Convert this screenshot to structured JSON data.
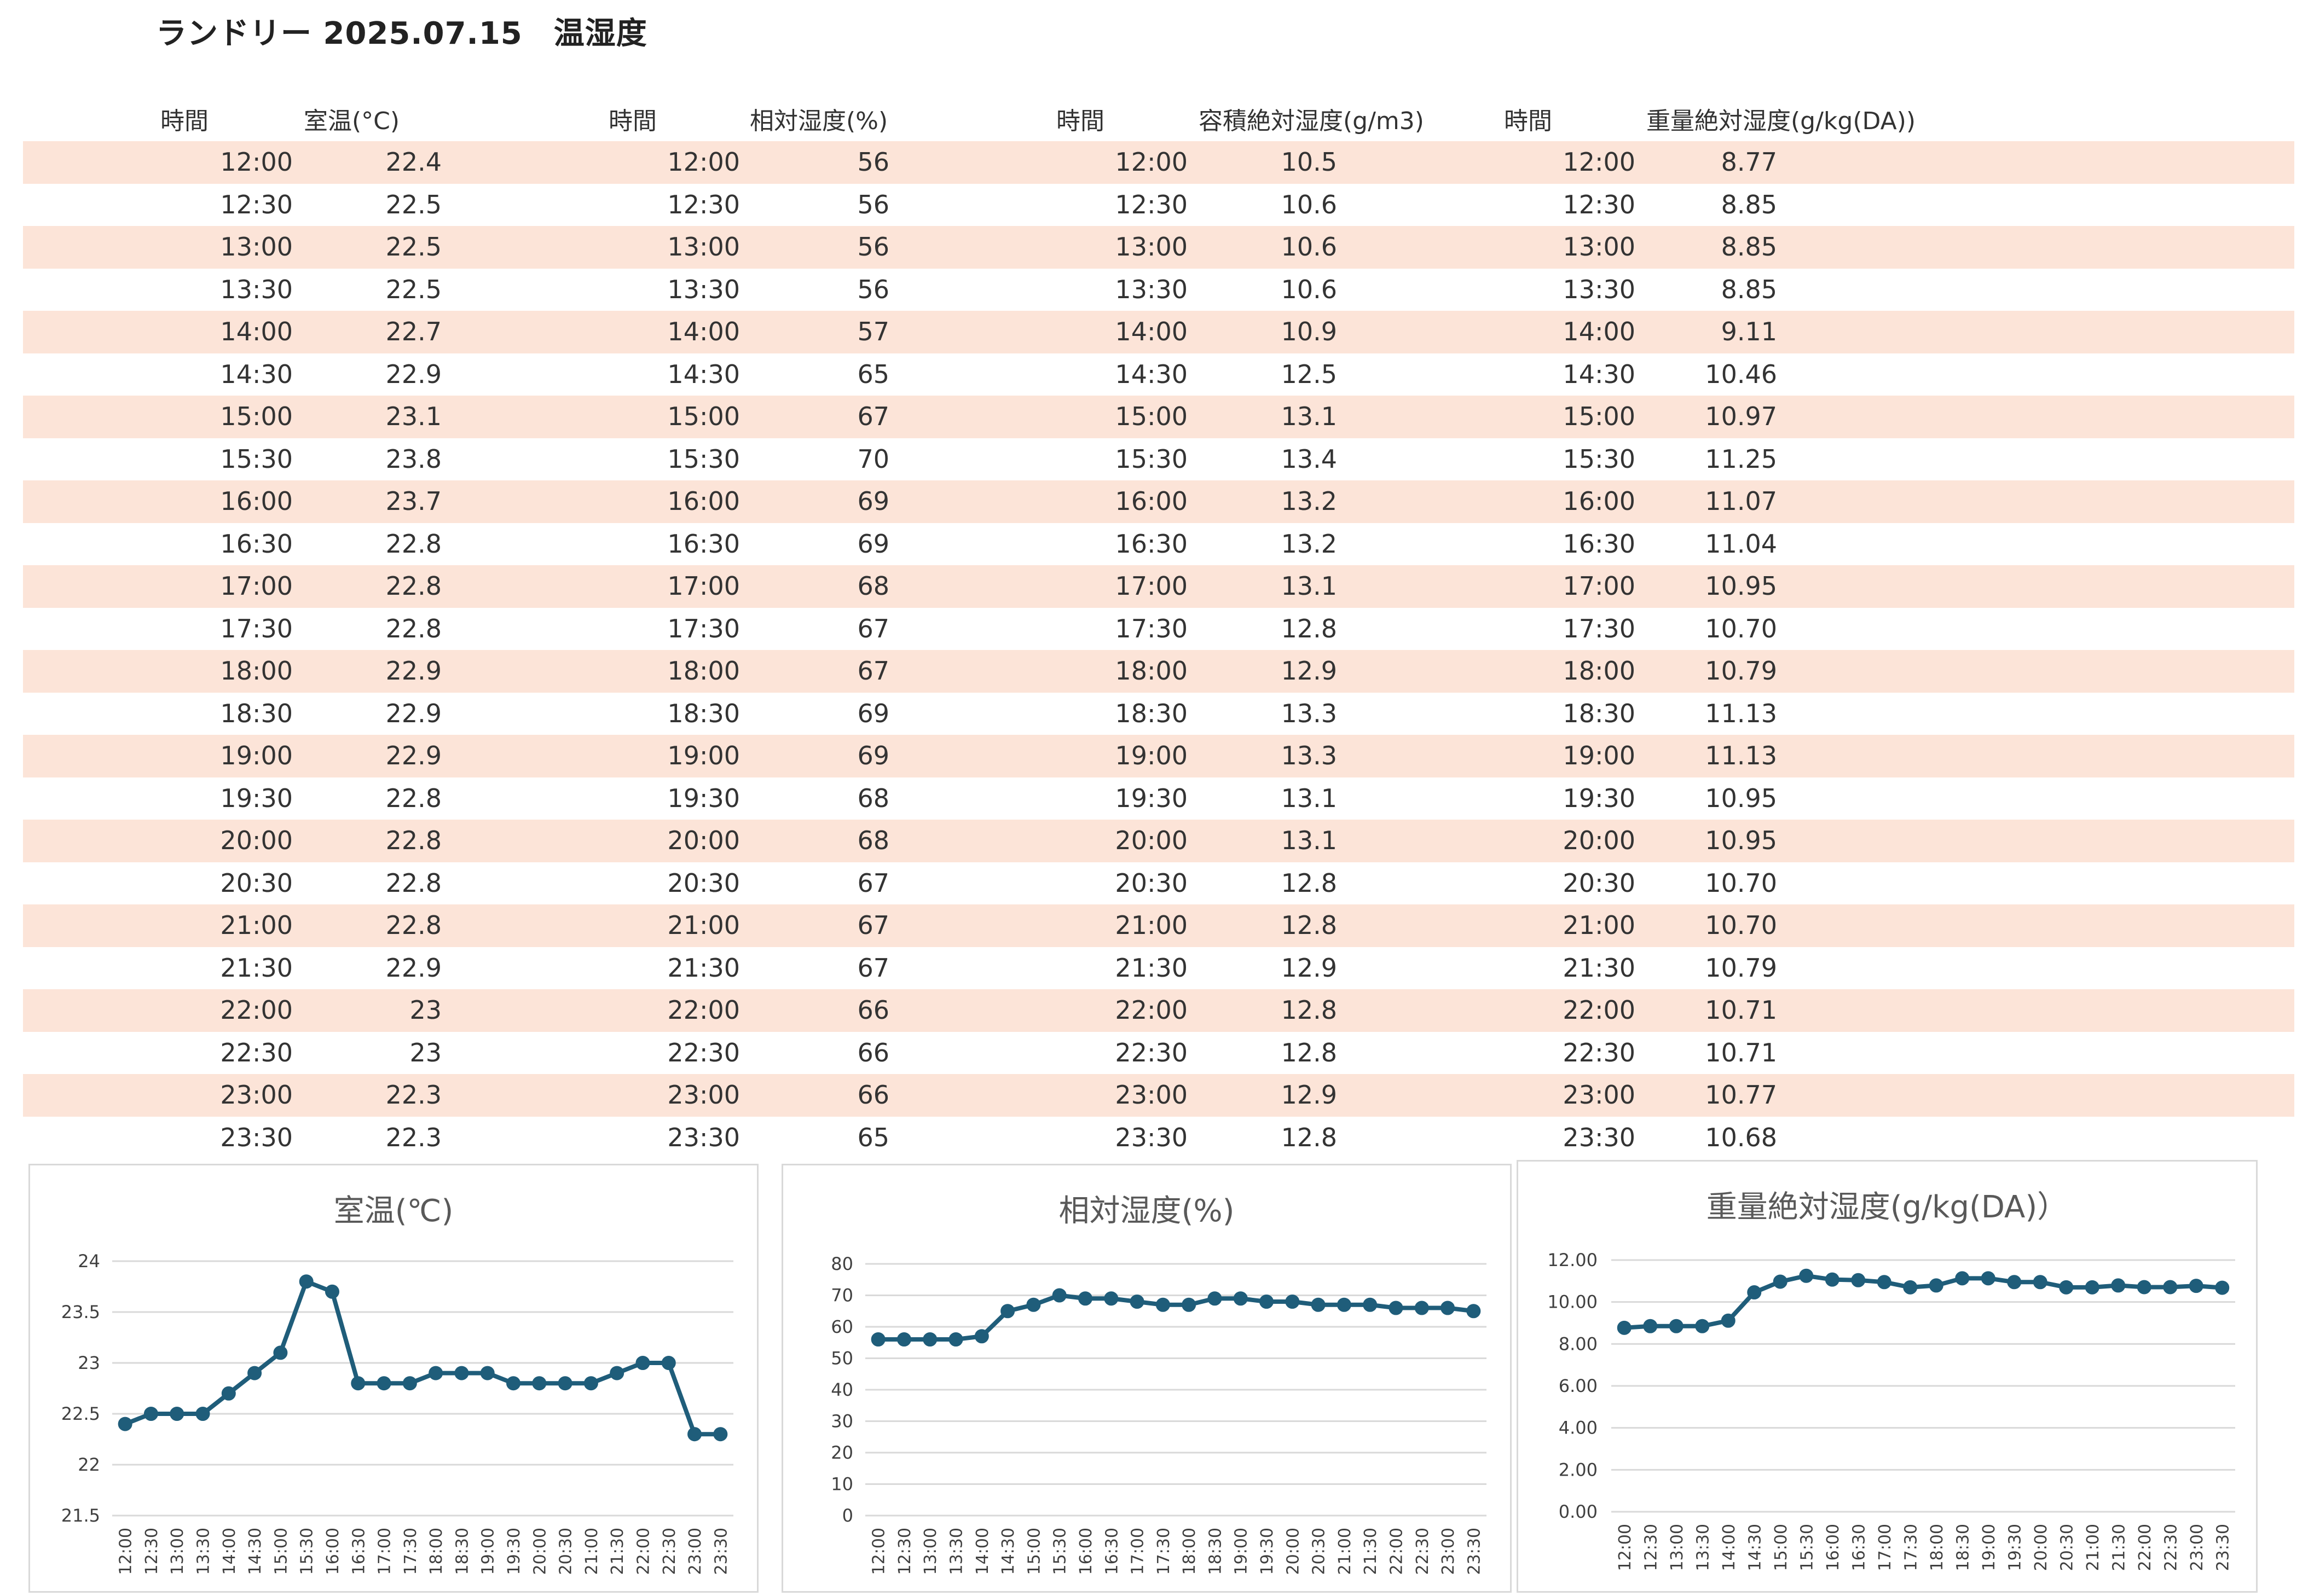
{
  "title": "ランドリー 2025.07.15　温湿度",
  "headers": {
    "time": "時間",
    "temp": "室温(°C)",
    "rh": "相対湿度(%)",
    "vol": "容積絶対湿度(g/m3)",
    "mass": "重量絶対湿度(g/kg(DA))"
  },
  "rows": [
    {
      "time": "12:00",
      "temp": "22.4",
      "rh": "56",
      "vol": "10.5",
      "mass": "8.77"
    },
    {
      "time": "12:30",
      "temp": "22.5",
      "rh": "56",
      "vol": "10.6",
      "mass": "8.85"
    },
    {
      "time": "13:00",
      "temp": "22.5",
      "rh": "56",
      "vol": "10.6",
      "mass": "8.85"
    },
    {
      "time": "13:30",
      "temp": "22.5",
      "rh": "56",
      "vol": "10.6",
      "mass": "8.85"
    },
    {
      "time": "14:00",
      "temp": "22.7",
      "rh": "57",
      "vol": "10.9",
      "mass": "9.11"
    },
    {
      "time": "14:30",
      "temp": "22.9",
      "rh": "65",
      "vol": "12.5",
      "mass": "10.46"
    },
    {
      "time": "15:00",
      "temp": "23.1",
      "rh": "67",
      "vol": "13.1",
      "mass": "10.97"
    },
    {
      "time": "15:30",
      "temp": "23.8",
      "rh": "70",
      "vol": "13.4",
      "mass": "11.25"
    },
    {
      "time": "16:00",
      "temp": "23.7",
      "rh": "69",
      "vol": "13.2",
      "mass": "11.07"
    },
    {
      "time": "16:30",
      "temp": "22.8",
      "rh": "69",
      "vol": "13.2",
      "mass": "11.04"
    },
    {
      "time": "17:00",
      "temp": "22.8",
      "rh": "68",
      "vol": "13.1",
      "mass": "10.95"
    },
    {
      "time": "17:30",
      "temp": "22.8",
      "rh": "67",
      "vol": "12.8",
      "mass": "10.70"
    },
    {
      "time": "18:00",
      "temp": "22.9",
      "rh": "67",
      "vol": "12.9",
      "mass": "10.79"
    },
    {
      "time": "18:30",
      "temp": "22.9",
      "rh": "69",
      "vol": "13.3",
      "mass": "11.13"
    },
    {
      "time": "19:00",
      "temp": "22.9",
      "rh": "69",
      "vol": "13.3",
      "mass": "11.13"
    },
    {
      "time": "19:30",
      "temp": "22.8",
      "rh": "68",
      "vol": "13.1",
      "mass": "10.95"
    },
    {
      "time": "20:00",
      "temp": "22.8",
      "rh": "68",
      "vol": "13.1",
      "mass": "10.95"
    },
    {
      "time": "20:30",
      "temp": "22.8",
      "rh": "67",
      "vol": "12.8",
      "mass": "10.70"
    },
    {
      "time": "21:00",
      "temp": "22.8",
      "rh": "67",
      "vol": "12.8",
      "mass": "10.70"
    },
    {
      "time": "21:30",
      "temp": "22.9",
      "rh": "67",
      "vol": "12.9",
      "mass": "10.79"
    },
    {
      "time": "22:00",
      "temp": "23",
      "rh": "66",
      "vol": "12.8",
      "mass": "10.71"
    },
    {
      "time": "22:30",
      "temp": "23",
      "rh": "66",
      "vol": "12.8",
      "mass": "10.71"
    },
    {
      "time": "23:00",
      "temp": "22.3",
      "rh": "66",
      "vol": "12.9",
      "mass": "10.77"
    },
    {
      "time": "23:30",
      "temp": "22.3",
      "rh": "65",
      "vol": "12.8",
      "mass": "10.68"
    }
  ],
  "colors": {
    "row_shade": "#fce4d8",
    "series_line": "#1f5d7a",
    "gridline": "#d9d9d9",
    "chart_title": "#595959"
  },
  "chart_data": [
    {
      "type": "line",
      "title": "室温(℃)",
      "categories": [
        "12:00",
        "12:30",
        "13:00",
        "13:30",
        "14:00",
        "14:30",
        "15:00",
        "15:30",
        "16:00",
        "16:30",
        "17:00",
        "17:30",
        "18:00",
        "18:30",
        "19:00",
        "19:30",
        "20:00",
        "20:30",
        "21:00",
        "21:30",
        "22:00",
        "22:30",
        "23:00",
        "23:30"
      ],
      "values": [
        22.4,
        22.5,
        22.5,
        22.5,
        22.7,
        22.9,
        23.1,
        23.8,
        23.7,
        22.8,
        22.8,
        22.8,
        22.9,
        22.9,
        22.9,
        22.8,
        22.8,
        22.8,
        22.8,
        22.9,
        23.0,
        23.0,
        22.3,
        22.3
      ],
      "ylim": [
        21.5,
        24
      ],
      "yticks": [
        "21.5",
        "22",
        "22.5",
        "23",
        "23.5",
        "24"
      ],
      "ytick_values": [
        21.5,
        22,
        22.5,
        23,
        23.5,
        24
      ],
      "grid": true
    },
    {
      "type": "line",
      "title": "相対湿度(%)",
      "categories": [
        "12:00",
        "12:30",
        "13:00",
        "13:30",
        "14:00",
        "14:30",
        "15:00",
        "15:30",
        "16:00",
        "16:30",
        "17:00",
        "17:30",
        "18:00",
        "18:30",
        "19:00",
        "19:30",
        "20:00",
        "20:30",
        "21:00",
        "21:30",
        "22:00",
        "22:30",
        "23:00",
        "23:30"
      ],
      "values": [
        56,
        56,
        56,
        56,
        57,
        65,
        67,
        70,
        69,
        69,
        68,
        67,
        67,
        69,
        69,
        68,
        68,
        67,
        67,
        67,
        66,
        66,
        66,
        65
      ],
      "ylim": [
        0,
        80
      ],
      "yticks": [
        "0",
        "10",
        "20",
        "30",
        "40",
        "50",
        "60",
        "70",
        "80"
      ],
      "ytick_values": [
        0,
        10,
        20,
        30,
        40,
        50,
        60,
        70,
        80
      ],
      "grid": true
    },
    {
      "type": "line",
      "title": "重量絶対湿度(g/kg(DA)）",
      "categories": [
        "12:00",
        "12:30",
        "13:00",
        "13:30",
        "14:00",
        "14:30",
        "15:00",
        "15:30",
        "16:00",
        "16:30",
        "17:00",
        "17:30",
        "18:00",
        "18:30",
        "19:00",
        "19:30",
        "20:00",
        "20:30",
        "21:00",
        "21:30",
        "22:00",
        "22:30",
        "23:00",
        "23:30"
      ],
      "values": [
        8.77,
        8.85,
        8.85,
        8.85,
        9.11,
        10.46,
        10.97,
        11.25,
        11.07,
        11.04,
        10.95,
        10.7,
        10.79,
        11.13,
        11.13,
        10.95,
        10.95,
        10.7,
        10.7,
        10.79,
        10.71,
        10.71,
        10.77,
        10.68
      ],
      "ylim": [
        0,
        12
      ],
      "yticks": [
        "0.00",
        "2.00",
        "4.00",
        "6.00",
        "8.00",
        "10.00",
        "12.00"
      ],
      "ytick_values": [
        0,
        2,
        4,
        6,
        8,
        10,
        12
      ],
      "grid": true
    }
  ]
}
